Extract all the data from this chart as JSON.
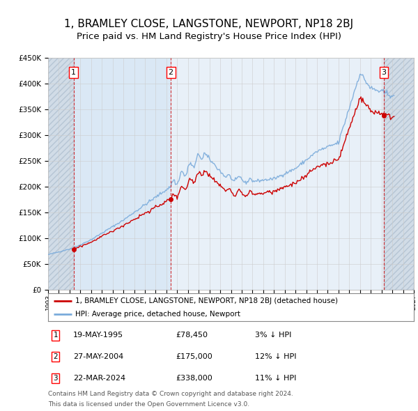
{
  "title": "1, BRAMLEY CLOSE, LANGSTONE, NEWPORT, NP18 2BJ",
  "subtitle": "Price paid vs. HM Land Registry's House Price Index (HPI)",
  "title_fontsize": 11,
  "subtitle_fontsize": 9.5,
  "xmin": 1993.0,
  "xmax": 2027.0,
  "ymin": 0,
  "ymax": 450000,
  "yticks": [
    0,
    50000,
    100000,
    150000,
    200000,
    250000,
    300000,
    350000,
    400000,
    450000
  ],
  "ytick_labels": [
    "£0",
    "£50K",
    "£100K",
    "£150K",
    "£200K",
    "£250K",
    "£300K",
    "£350K",
    "£400K",
    "£450K"
  ],
  "sales": [
    {
      "date_num": 1995.38,
      "price": 78450,
      "label": "1",
      "date_str": "19-MAY-1995",
      "price_str": "£78,450",
      "hpi_str": "3% ↓ HPI"
    },
    {
      "date_num": 2004.41,
      "price": 175000,
      "label": "2",
      "date_str": "27-MAY-2004",
      "price_str": "£175,000",
      "hpi_str": "12% ↓ HPI"
    },
    {
      "date_num": 2024.22,
      "price": 338000,
      "label": "3",
      "date_str": "22-MAR-2024",
      "price_str": "£338,000",
      "hpi_str": "11% ↓ HPI"
    }
  ],
  "hpi_line_color": "#7aabdb",
  "property_line_color": "#cc0000",
  "vline_color": "#cc0000",
  "background_color": "#ffffff",
  "plot_bg_color": "#e8f0f8",
  "shaded_region_color": "#dae8f5",
  "grid_color": "#cccccc",
  "legend_line1": "1, BRAMLEY CLOSE, LANGSTONE, NEWPORT, NP18 2BJ (detached house)",
  "legend_line2": "HPI: Average price, detached house, Newport",
  "footnote1": "Contains HM Land Registry data © Crown copyright and database right 2024.",
  "footnote2": "This data is licensed under the Open Government Licence v3.0."
}
